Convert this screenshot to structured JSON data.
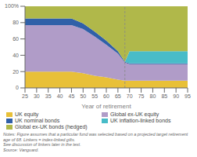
{
  "chart_data": {
    "type": "area",
    "stacked": true,
    "xlabel": "Year of retirement",
    "x": [
      25,
      30,
      35,
      40,
      45,
      50,
      55,
      60,
      65,
      68,
      70,
      75,
      80,
      85,
      90,
      95
    ],
    "series": [
      {
        "name": "UK equity",
        "color": "#e8c038",
        "values": [
          20,
          20,
          20,
          20,
          20,
          18,
          15,
          13,
          10,
          9,
          9,
          9,
          9,
          9,
          9,
          9
        ]
      },
      {
        "name": "Global ex-UK equity",
        "color": "#b09cc8",
        "values": [
          57,
          57,
          57,
          57,
          57,
          54,
          48,
          40,
          32,
          22,
          20,
          20,
          20,
          20,
          20,
          20
        ]
      },
      {
        "name": "UK nominal bonds",
        "color": "#3060a8",
        "values": [
          8,
          8,
          8,
          8,
          8,
          7,
          6,
          5,
          3,
          1,
          1,
          1,
          1,
          1,
          1,
          1
        ]
      },
      {
        "name": "UK inflation-linked bonds",
        "color": "#48bcc8",
        "values": [
          0,
          0,
          0,
          0,
          0,
          0,
          0,
          0,
          0,
          0,
          15,
          15,
          15,
          15,
          15,
          15
        ]
      },
      {
        "name": "Global ex-UK bonds (hedged)",
        "color": "#b0b84a",
        "values": [
          15,
          15,
          15,
          15,
          15,
          21,
          31,
          42,
          55,
          68,
          55,
          55,
          55,
          55,
          55,
          55
        ]
      }
    ],
    "reference_x": 68,
    "xlim": [
      25,
      95
    ],
    "ylim": [
      0,
      100
    ],
    "xticks": [
      25,
      30,
      35,
      40,
      45,
      50,
      55,
      60,
      65,
      70,
      75,
      80,
      85,
      90,
      95
    ],
    "yticks": [
      0,
      20,
      40,
      60,
      80,
      {
        "value": 100,
        "label": "100%"
      }
    ],
    "grid": false,
    "legend": "bottom",
    "note": "Notes: Figure assumes that a particular fund was selected based on a projected target retirement age of 68. Linkers = index-linked gilts.\nSee discussion of linkers later in the text.",
    "source": "Source: Vanguard."
  }
}
